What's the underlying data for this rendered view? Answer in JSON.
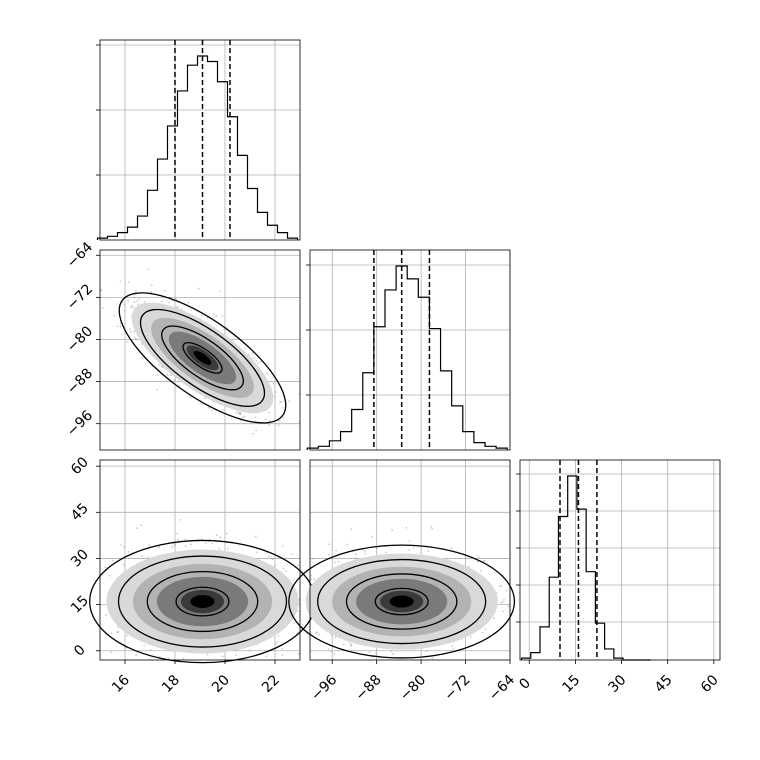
{
  "chart_data": [
    {
      "panel": "hist-param-1",
      "type": "bar",
      "x": [
        15.1,
        15.5,
        15.9,
        16.3,
        16.7,
        17.1,
        17.5,
        17.9,
        18.3,
        18.7,
        19.1,
        19.5,
        19.9,
        20.3,
        20.7,
        21.1,
        21.5,
        21.9,
        22.3,
        22.7
      ],
      "values": [
        1,
        2,
        4,
        7,
        13,
        27,
        44,
        62,
        81,
        95,
        100,
        97,
        86,
        67,
        46,
        28,
        15,
        8,
        4,
        1
      ],
      "xlim": [
        15,
        23
      ],
      "quantile_lines": [
        18.0,
        19.1,
        20.2
      ],
      "xticks": [
        "16",
        "18",
        "20",
        "22"
      ],
      "grid": true
    },
    {
      "panel": "scatter-param-2-vs-param-1",
      "type": "scatter",
      "x_center": 19.1,
      "y_center": -83.5,
      "xlim": [
        15,
        23
      ],
      "ylim": [
        -101,
        -63
      ],
      "contour_levels": 4,
      "yticks": [
        "−64",
        "−72",
        "−80",
        "−88",
        "−96"
      ],
      "grid": true
    },
    {
      "panel": "hist-param-2",
      "type": "bar",
      "x": [
        -99.5,
        -97.5,
        -95.5,
        -93.5,
        -91.5,
        -89.5,
        -87.5,
        -85.5,
        -83.5,
        -81.5,
        -79.5,
        -77.5,
        -75.5,
        -73.5,
        -71.5,
        -69.5,
        -67.5,
        -65.5
      ],
      "values": [
        1,
        2,
        5,
        10,
        22,
        42,
        67,
        87,
        100,
        93,
        83,
        66,
        43,
        24,
        10,
        4,
        2,
        1
      ],
      "xlim": [
        -100,
        -64
      ],
      "quantile_lines": [
        -88.5,
        -83.5,
        -78.5
      ],
      "grid": true
    },
    {
      "panel": "scatter-param-3-vs-param-1",
      "type": "scatter",
      "x_center": 19.1,
      "y_center": 16,
      "xlim": [
        15,
        23
      ],
      "ylim": [
        -3,
        62
      ],
      "contour_levels": 4,
      "xlabel_ticks": [
        "16",
        "18",
        "20",
        "22"
      ],
      "yticks": [
        "60",
        "45",
        "30",
        "15",
        "0"
      ],
      "grid": true
    },
    {
      "panel": "scatter-param-3-vs-param-2",
      "type": "scatter",
      "x_center": -83.5,
      "y_center": 16,
      "xlim": [
        -100,
        -64
      ],
      "ylim": [
        -3,
        62
      ],
      "contour_levels": 4,
      "xticks": [
        "−96",
        "−88",
        "−80",
        "−72",
        "−64"
      ],
      "grid": true
    },
    {
      "panel": "hist-param-3",
      "type": "bar",
      "x": [
        -1,
        2,
        5,
        8,
        11,
        14,
        17,
        20,
        23,
        26,
        29,
        32,
        35,
        38
      ],
      "values": [
        1,
        4,
        18,
        45,
        78,
        100,
        82,
        48,
        20,
        6,
        1,
        0,
        0,
        0
      ],
      "xlim": [
        -3,
        62
      ],
      "quantile_lines": [
        10,
        16,
        22
      ],
      "xticks": [
        "0",
        "15",
        "30",
        "45",
        "60"
      ],
      "grid": true
    }
  ]
}
